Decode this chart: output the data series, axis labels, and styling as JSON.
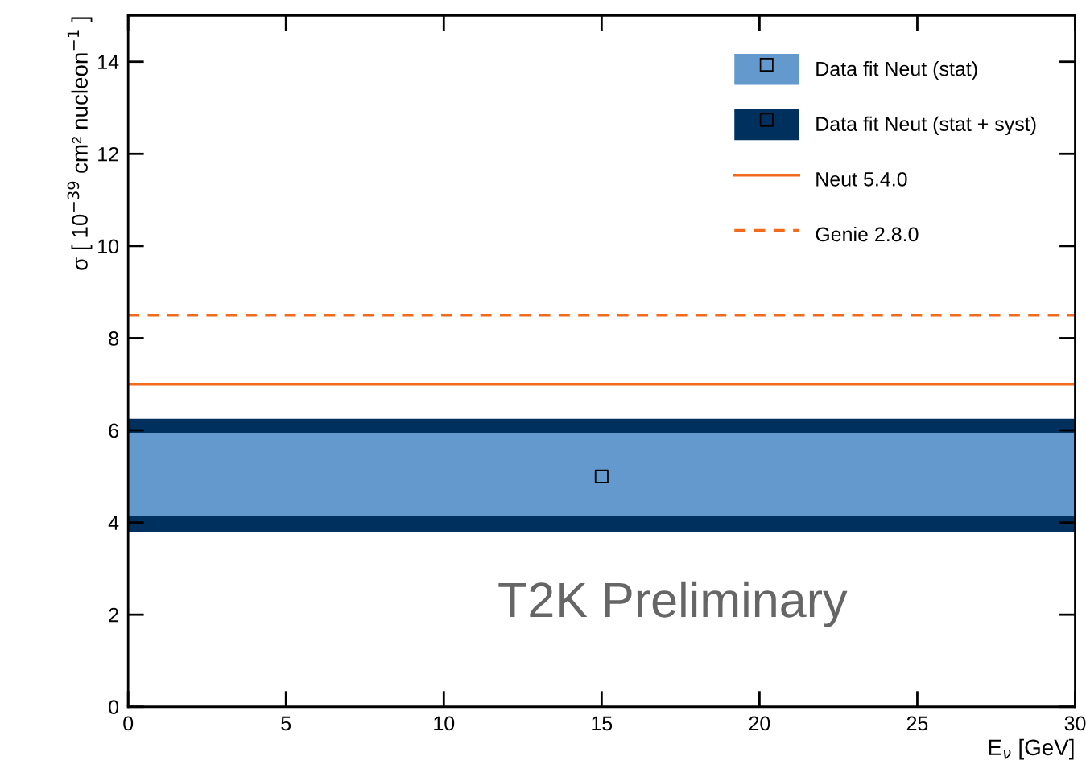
{
  "chart_data": {
    "type": "scatter",
    "xlabel": "E$_{ν}$ [GeV]",
    "ylabel": "σ [ 10$^{−39}$ cm² nucleon$^{−1}$ ]",
    "xlim": [
      0,
      30
    ],
    "ylim": [
      0,
      15
    ],
    "xticks": [
      0,
      5,
      10,
      15,
      20,
      25,
      30
    ],
    "yticks": [
      0,
      2,
      4,
      6,
      8,
      10,
      12,
      14
    ],
    "series": [
      {
        "color": "#000000",
        "x": [
          15
        ],
        "values": [
          5.0
        ]
      }
    ],
    "marker": "square",
    "bands": [
      {
        "axis": "y",
        "from": 3.8,
        "to": 6.25,
        "label": "Data fit Neut (stat + syst)",
        "color": "#00305e"
      },
      {
        "axis": "y",
        "from": 4.15,
        "to": 5.95,
        "label": "Data fit Neut (stat)",
        "color": "#6399cd"
      }
    ],
    "ref_lines": [
      {
        "axis": "y",
        "value": 7.0,
        "label": "Neut 5.4.0",
        "color": "#f26b1d",
        "line_style": "solid"
      },
      {
        "axis": "y",
        "value": 8.5,
        "label": "Genie 2.8.0",
        "color": "#f26b1d",
        "line_style": "dashed"
      }
    ],
    "legend": "top right",
    "grid": false,
    "annotations": [
      "T2K Preliminary"
    ]
  }
}
